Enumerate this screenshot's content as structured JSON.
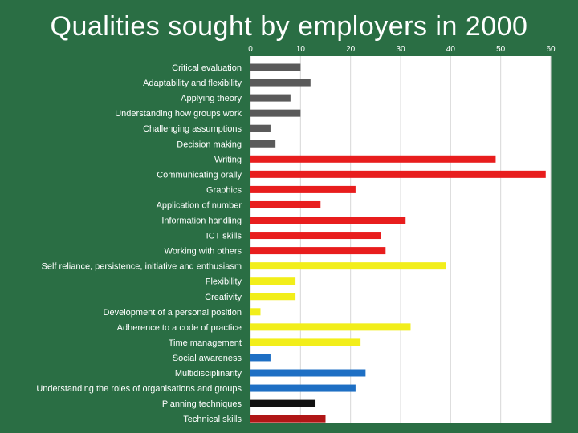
{
  "slide": {
    "title": "Qualities sought by employers in 2000"
  },
  "chart_data": {
    "type": "bar",
    "orientation": "horizontal",
    "title": "Qualities sought by employers in 2000",
    "xlabel": "",
    "ylabel": "",
    "xlim": [
      0,
      60
    ],
    "xticks": [
      0,
      10,
      20,
      30,
      40,
      50,
      60
    ],
    "grid": true,
    "legend": "none",
    "categories": [
      "Critical evaluation",
      "Adaptability and flexibility",
      "Applying theory",
      "Understanding how groups work",
      "Challenging assumptions",
      "Decision making",
      "Writing",
      "Communicating orally",
      "Graphics",
      "Application of number",
      "Information handling",
      "ICT skills",
      "Working with others",
      "Self reliance, persistence, initiative and enthusiasm",
      "Flexibility",
      "Creativity",
      "Development of a personal position",
      "Adherence to a code of practice",
      "Time management",
      "Social awareness",
      "Multidisciplinarity",
      "Understanding the roles of organisations and groups",
      "Planning techniques",
      "Technical skills"
    ],
    "values": [
      10,
      12,
      8,
      10,
      4,
      5,
      49,
      59,
      21,
      14,
      31,
      26,
      27,
      39,
      9,
      9,
      2,
      32,
      22,
      4,
      23,
      21,
      13,
      15
    ],
    "colors": [
      "#5a5a5a",
      "#5a5a5a",
      "#5a5a5a",
      "#5a5a5a",
      "#5a5a5a",
      "#5a5a5a",
      "#e81d1d",
      "#e81d1d",
      "#e81d1d",
      "#e81d1d",
      "#e81d1d",
      "#e81d1d",
      "#e81d1d",
      "#f2ee1a",
      "#f2ee1a",
      "#f2ee1a",
      "#f2ee1a",
      "#f2ee1a",
      "#f2ee1a",
      "#1e6fc4",
      "#1e6fc4",
      "#1e6fc4",
      "#111111",
      "#b01616"
    ],
    "plot_background": "#ffffff",
    "gridline_color": "#d8d8d8"
  }
}
